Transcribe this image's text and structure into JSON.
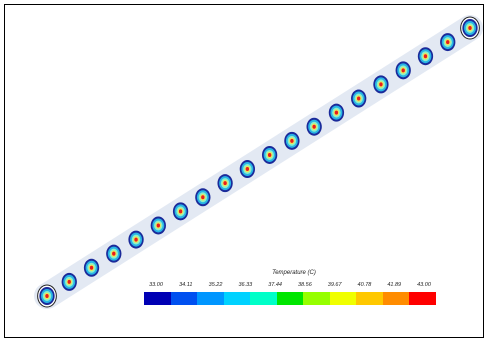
{
  "legend": {
    "title": "Temperature (C)",
    "ticks": [
      "33.00",
      "34.11",
      "35.22",
      "36.33",
      "37.44",
      "38.56",
      "39.67",
      "40.78",
      "41.89",
      "43.00"
    ],
    "colors": [
      "#0000b4",
      "#0050f0",
      "#0096ff",
      "#00d2ff",
      "#00ffc8",
      "#00e600",
      "#96ff00",
      "#f0ff00",
      "#ffc800",
      "#ff8c00",
      "#ff0000"
    ]
  },
  "colors": {
    "background": "#ffffff",
    "frame": "#000000",
    "tube": "#d2dcec",
    "ring_outer": "#1a2a9a",
    "ring_mid": "#28b4e6",
    "ring_inner": "#8cf0c8",
    "ring_yellow": "#f5e650",
    "core": "#e61e1e"
  }
}
